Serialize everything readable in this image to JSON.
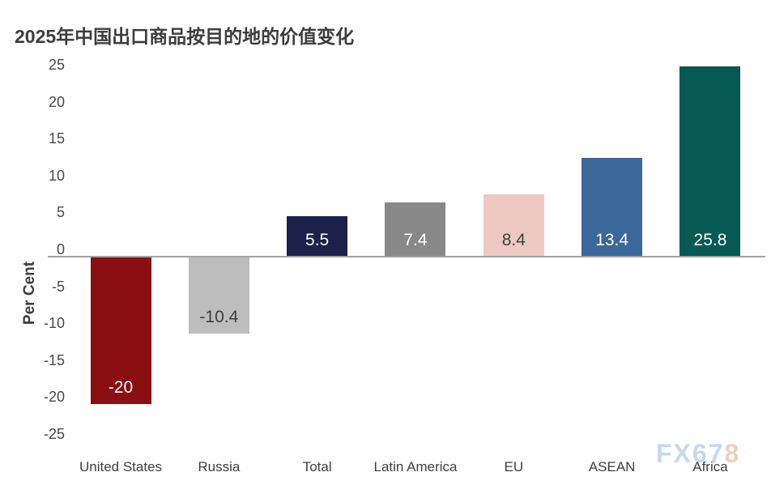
{
  "title": "2025年中国出口商品按目的地的价值变化",
  "watermark": {
    "part1": "FX67",
    "part2": "8",
    "color1": "#c6d9ec",
    "color2": "#e9d3c0"
  },
  "chart_data": {
    "type": "bar",
    "title": "2025年中国出口商品按目的地的价值变化",
    "categories": [
      "United States",
      "Russia",
      "Total",
      "Latin America",
      "EU",
      "ASEAN",
      "Africa"
    ],
    "values": [
      -20,
      -10.4,
      5.5,
      7.4,
      8.4,
      13.4,
      25.8
    ],
    "value_labels": [
      "-20",
      "-10.4",
      "5.5",
      "7.4",
      "8.4",
      "13.4",
      "25.8"
    ],
    "bar_colors": [
      "#8a0e12",
      "#bdbdbd",
      "#1c2149",
      "#888888",
      "#eec9c4",
      "#3b679a",
      "#075953"
    ],
    "label_colors": [
      "#ffffff",
      "#3f3f3f",
      "#ffffff",
      "#ffffff",
      "#3f3f3f",
      "#ffffff",
      "#ffffff"
    ],
    "xlabel": "",
    "ylabel": "Per Cent",
    "ylim": [
      -25,
      25
    ],
    "yticks": [
      25,
      20,
      15,
      10,
      5,
      0,
      -5,
      -10,
      -15,
      -20,
      -25
    ],
    "grid": false,
    "legend": "none",
    "axis_color": "#a3a3a3",
    "background": "#ffffff"
  }
}
